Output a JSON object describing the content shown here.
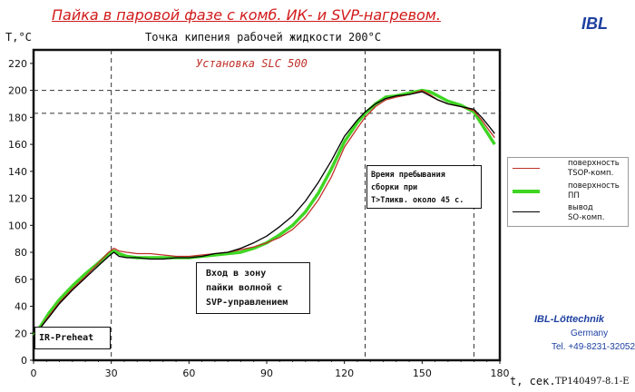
{
  "header": {
    "title": "Пайка в паровой фазе с комб. ИК- и SVP-нагревом.",
    "brand": "IBL"
  },
  "chart_data": {
    "type": "line",
    "title": "Точка кипения рабочей жидкости 200°C",
    "subtitle": "Установка SLC 500",
    "xlabel": "t, сек.",
    "ylabel": "T,°C",
    "xlim": [
      0,
      180
    ],
    "ylim": [
      0,
      230
    ],
    "x_ticks": [
      0,
      30,
      60,
      90,
      120,
      150,
      180
    ],
    "y_ticks": [
      0,
      20,
      40,
      60,
      80,
      100,
      120,
      140,
      160,
      180,
      200,
      220
    ],
    "grid": false,
    "reference_lines": {
      "vertical": [
        30,
        128,
        170
      ],
      "horizontal": [
        183,
        200
      ]
    },
    "series": [
      {
        "name": "поверхность TSOP-комп.",
        "color": "#c0302a",
        "points": [
          [
            0,
            18
          ],
          [
            3,
            25
          ],
          [
            6,
            33
          ],
          [
            10,
            43
          ],
          [
            15,
            53
          ],
          [
            20,
            62
          ],
          [
            25,
            72
          ],
          [
            29,
            80
          ],
          [
            31,
            83
          ],
          [
            33,
            81
          ],
          [
            36,
            80
          ],
          [
            40,
            79
          ],
          [
            45,
            79
          ],
          [
            50,
            78
          ],
          [
            55,
            77
          ],
          [
            60,
            77
          ],
          [
            65,
            78
          ],
          [
            70,
            79
          ],
          [
            75,
            80
          ],
          [
            80,
            82
          ],
          [
            85,
            84
          ],
          [
            90,
            87
          ],
          [
            95,
            91
          ],
          [
            100,
            97
          ],
          [
            105,
            106
          ],
          [
            110,
            119
          ],
          [
            115,
            136
          ],
          [
            120,
            158
          ],
          [
            125,
            172
          ],
          [
            128,
            180
          ],
          [
            132,
            188
          ],
          [
            136,
            193
          ],
          [
            140,
            195
          ],
          [
            145,
            197
          ],
          [
            150,
            200
          ],
          [
            153,
            197
          ],
          [
            156,
            193
          ],
          [
            160,
            190
          ],
          [
            165,
            188
          ],
          [
            170,
            185
          ],
          [
            173,
            178
          ],
          [
            176,
            170
          ],
          [
            178,
            165
          ]
        ]
      },
      {
        "name": "поверхность ПП",
        "color": "#3ed623",
        "points": [
          [
            0,
            18
          ],
          [
            3,
            26
          ],
          [
            6,
            35
          ],
          [
            10,
            45
          ],
          [
            15,
            55
          ],
          [
            20,
            64
          ],
          [
            25,
            72
          ],
          [
            29,
            79
          ],
          [
            31,
            81
          ],
          [
            33,
            79
          ],
          [
            36,
            77
          ],
          [
            40,
            76
          ],
          [
            45,
            76
          ],
          [
            50,
            76
          ],
          [
            55,
            76
          ],
          [
            60,
            76
          ],
          [
            65,
            77
          ],
          [
            70,
            78
          ],
          [
            75,
            79
          ],
          [
            80,
            80
          ],
          [
            85,
            83
          ],
          [
            90,
            87
          ],
          [
            95,
            93
          ],
          [
            100,
            100
          ],
          [
            105,
            110
          ],
          [
            110,
            124
          ],
          [
            115,
            142
          ],
          [
            120,
            162
          ],
          [
            125,
            176
          ],
          [
            128,
            183
          ],
          [
            132,
            190
          ],
          [
            136,
            195
          ],
          [
            140,
            196
          ],
          [
            145,
            198
          ],
          [
            150,
            200
          ],
          [
            153,
            199
          ],
          [
            156,
            196
          ],
          [
            160,
            192
          ],
          [
            165,
            189
          ],
          [
            170,
            184
          ],
          [
            173,
            175
          ],
          [
            176,
            166
          ],
          [
            178,
            160
          ]
        ]
      },
      {
        "name": "вывод SO-комп.",
        "color": "#000000",
        "points": [
          [
            0,
            18
          ],
          [
            3,
            25
          ],
          [
            6,
            32
          ],
          [
            10,
            42
          ],
          [
            15,
            52
          ],
          [
            20,
            61
          ],
          [
            25,
            70
          ],
          [
            29,
            77
          ],
          [
            31,
            80
          ],
          [
            33,
            77
          ],
          [
            36,
            76
          ],
          [
            40,
            76
          ],
          [
            45,
            75
          ],
          [
            50,
            75
          ],
          [
            55,
            76
          ],
          [
            60,
            76
          ],
          [
            65,
            77
          ],
          [
            70,
            79
          ],
          [
            75,
            80
          ],
          [
            80,
            83
          ],
          [
            85,
            87
          ],
          [
            90,
            92
          ],
          [
            95,
            99
          ],
          [
            100,
            107
          ],
          [
            105,
            118
          ],
          [
            110,
            132
          ],
          [
            115,
            148
          ],
          [
            120,
            166
          ],
          [
            125,
            178
          ],
          [
            128,
            184
          ],
          [
            132,
            190
          ],
          [
            136,
            194
          ],
          [
            140,
            196
          ],
          [
            145,
            197
          ],
          [
            150,
            199
          ],
          [
            153,
            196
          ],
          [
            156,
            193
          ],
          [
            160,
            190
          ],
          [
            165,
            188
          ],
          [
            170,
            186
          ],
          [
            173,
            180
          ],
          [
            176,
            173
          ],
          [
            178,
            168
          ]
        ]
      }
    ],
    "annotations": {
      "ir": "IR-Preheat",
      "wave": [
        "Вход в зону",
        "пайки волной с",
        "SVP-управлением"
      ],
      "dwell": [
        "Время пребывания",
        "сборки при",
        "T>Тликв. около 45 с."
      ]
    },
    "legend_position": "right"
  },
  "legend": [
    {
      "label_line1": "поверхность",
      "label_line2": "TSOP-комп.",
      "color": "#c0302a"
    },
    {
      "label_line1": "поверхность",
      "label_line2": "ПП",
      "color": "#3ed623"
    },
    {
      "label_line1": "вывод",
      "label_line2": "SO-комп.",
      "color": "#000000"
    }
  ],
  "company": {
    "name": "IBL-Löttechnik",
    "country": "Germany",
    "phone": "Tel. +49-8231-32052"
  },
  "doc_code": "TP140497-8.1-E"
}
